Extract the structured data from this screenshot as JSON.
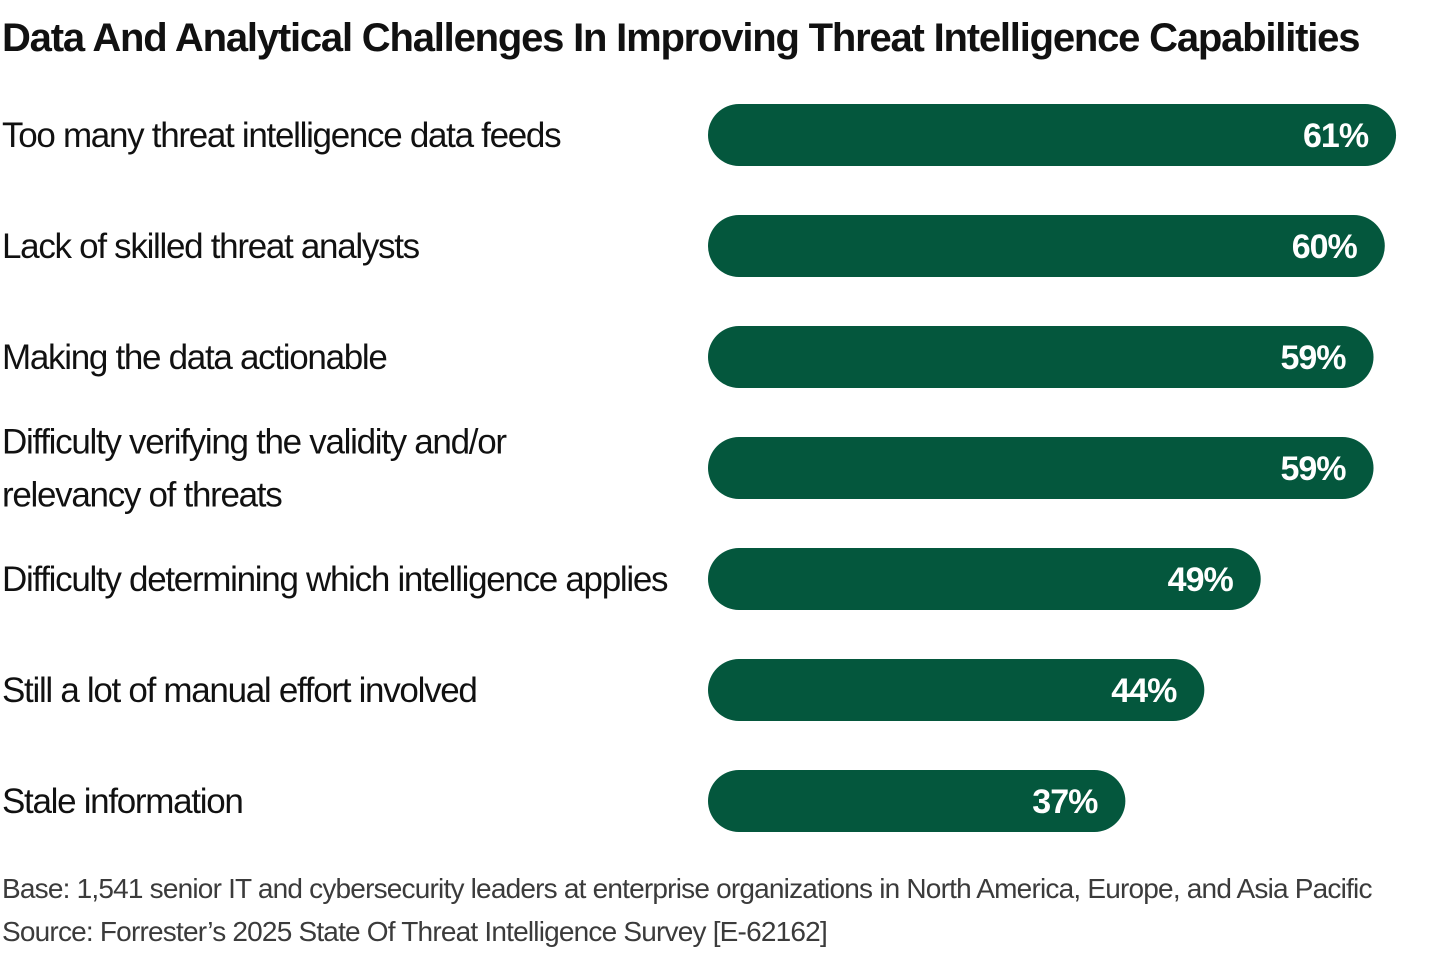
{
  "chart_data": {
    "type": "bar",
    "orientation": "horizontal",
    "title": "Data And Analytical Challenges In Improving Threat Intelligence Capabilities",
    "categories": [
      [
        "Too many threat intelligence data feeds"
      ],
      [
        "Lack of skilled threat analysts"
      ],
      [
        "Making the data actionable"
      ],
      [
        "Difficulty verifying the validity and/or",
        "relevancy of threats"
      ],
      [
        "Difficulty determining which intelligence applies"
      ],
      [
        "Still a lot of manual effort involved"
      ],
      [
        "Stale information"
      ]
    ],
    "values": [
      61,
      60,
      59,
      59,
      49,
      44,
      37
    ],
    "value_labels": [
      "61%",
      "60%",
      "59%",
      "59%",
      "49%",
      "44%",
      "37%"
    ],
    "unit": "%",
    "grid": false,
    "legend": "none",
    "colors": {
      "bar": "#04573D",
      "value_label": "#FFFFFF",
      "category_label": "#111111"
    }
  },
  "footnotes": {
    "base": "Base: 1,541 senior IT and cybersecurity leaders at enterprise organizations in North America, Europe, and Asia Pacific",
    "source": "Source: Forrester’s 2025 State Of Threat Intelligence Survey [E-62162]"
  }
}
